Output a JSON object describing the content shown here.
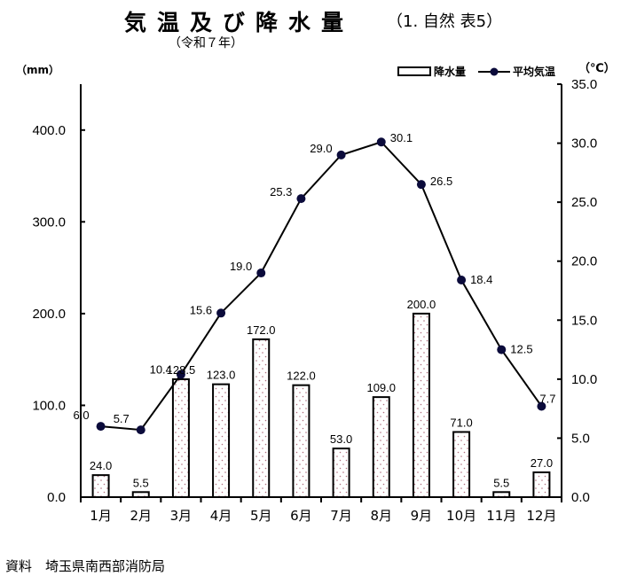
{
  "header": {
    "title": "気温及び降水量",
    "title_suffix": "（1. 自然 表5）",
    "year": "（令和７年）"
  },
  "axes": {
    "left_unit": "（mm）",
    "right_unit": "（℃）"
  },
  "legend": {
    "precip_label": "降水量",
    "temp_label": "平均気温"
  },
  "footer": {
    "source": "資料　埼玉県南西部消防局"
  },
  "colors": {
    "bar_fill": "#ffffff",
    "bar_dot": "#b07080",
    "line": "#000000",
    "marker": "#0b0b3b"
  },
  "chart_data": {
    "type": "bar+line",
    "title": "気温及び降水量（1. 自然 表5）",
    "subtitle": "（令和７年）",
    "categories": [
      "1月",
      "2月",
      "3月",
      "4月",
      "5月",
      "6月",
      "7月",
      "8月",
      "9月",
      "10月",
      "11月",
      "12月"
    ],
    "series": [
      {
        "name": "降水量",
        "type": "bar",
        "axis": "left",
        "values": [
          24.0,
          5.5,
          128.5,
          123.0,
          172.0,
          122.0,
          53.0,
          109.0,
          200.0,
          71.0,
          5.5,
          27.0
        ]
      },
      {
        "name": "平均気温",
        "type": "line",
        "axis": "right",
        "values": [
          6.0,
          5.7,
          10.4,
          15.6,
          19.0,
          25.3,
          29.0,
          30.1,
          26.5,
          18.4,
          12.5,
          7.7
        ]
      }
    ],
    "ylabel_left": "（mm）",
    "ylabel_right": "（℃）",
    "ylim_left": [
      0,
      450
    ],
    "ylim_right": [
      0,
      35
    ],
    "yticks_left": [
      "0.0",
      "100.0",
      "200.0",
      "300.0",
      "400.0"
    ],
    "yticks_right": [
      "0.0",
      "5.0",
      "10.0",
      "15.0",
      "20.0",
      "25.0",
      "30.0",
      "35.0"
    ],
    "legend_position": "top-right",
    "grid": false,
    "source": "資料　埼玉県南西部消防局"
  }
}
